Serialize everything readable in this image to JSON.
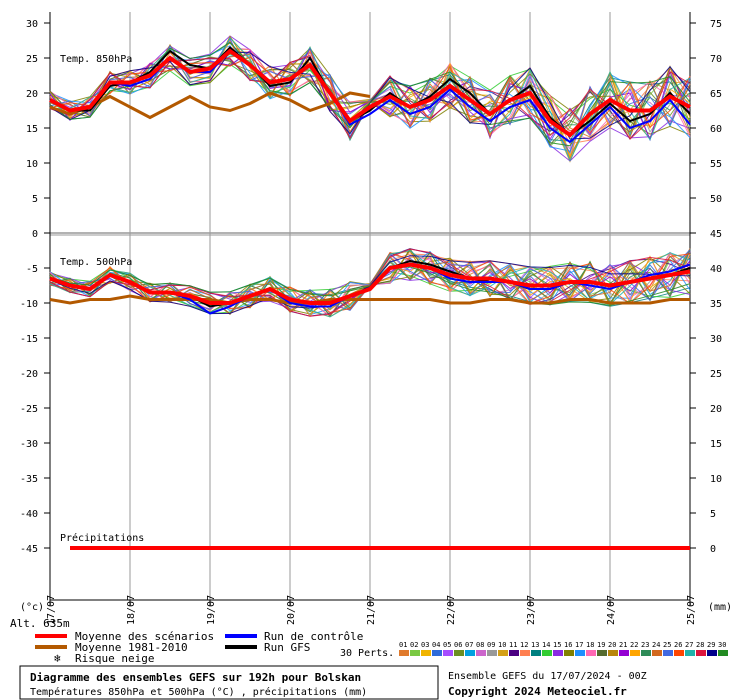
{
  "chart_data": {
    "type": "line",
    "dates": [
      "17/07",
      "18/07",
      "19/07",
      "20/07",
      "21/07",
      "22/07",
      "23/07",
      "24/07",
      "25/07"
    ],
    "x_unit_note": "",
    "left_ticks": [
      30,
      25,
      20,
      15,
      10,
      5,
      0,
      -5,
      -10,
      -15,
      -20,
      -25,
      -30,
      -35,
      -40,
      -45
    ],
    "right_ticks": [
      75,
      70,
      65,
      60,
      55,
      50,
      45,
      40,
      35,
      30,
      25,
      20,
      15,
      10,
      5,
      0
    ],
    "left_unit": "(°c)",
    "right_unit": "(mm)",
    "altitude": "Alt. 635m",
    "panel_labels": {
      "t850": "Temp. 850hPa",
      "t500": "Temp. 500hPa",
      "precip": "Précipitations"
    },
    "x_hours": [
      0,
      6,
      12,
      18,
      24,
      30,
      36,
      42,
      48,
      54,
      60,
      66,
      72,
      78,
      84,
      90,
      96,
      102,
      108,
      114,
      120,
      126,
      132,
      138,
      144,
      150,
      156,
      162,
      168,
      174,
      180,
      186,
      192
    ],
    "t850": {
      "mean": [
        19,
        17.5,
        18,
        21.5,
        21.5,
        22.5,
        25,
        23,
        23.5,
        26,
        24,
        21.5,
        22,
        24,
        20,
        16,
        18,
        19.5,
        18,
        19,
        21,
        19,
        17,
        19,
        20,
        16,
        14,
        17,
        19,
        17.5,
        17.5,
        19.5,
        18
      ],
      "climo": [
        18,
        17,
        18,
        19.5,
        18,
        16.5,
        18,
        19.5,
        18,
        17.5,
        18.5,
        20,
        19,
        17.5,
        18.5,
        20,
        19.5,
        null,
        null,
        null,
        null,
        null,
        null,
        null,
        null,
        null,
        null,
        null,
        null,
        null,
        null,
        null,
        null
      ],
      "control": [
        19,
        17.5,
        18,
        21.5,
        21,
        22,
        25,
        23,
        23,
        26,
        24,
        21.5,
        22,
        24,
        20,
        15.5,
        17,
        19,
        17,
        18,
        20.5,
        18,
        16,
        18,
        19,
        15,
        13,
        15.5,
        18,
        15,
        16,
        19,
        15.5
      ],
      "gfs": [
        19,
        17.5,
        17.5,
        21,
        21.5,
        23,
        26,
        24,
        23.5,
        26.5,
        24,
        21,
        21.5,
        25,
        20,
        16,
        17.5,
        20,
        18,
        19.5,
        22,
        20,
        17,
        19,
        21,
        16.5,
        14,
        16,
        18.5,
        16,
        17,
        20,
        17
      ]
    },
    "t500": {
      "mean": [
        -6.5,
        -7.5,
        -8,
        -6,
        -7,
        -8.5,
        -8.5,
        -9,
        -10,
        -10,
        -9,
        -8,
        -9.5,
        -10,
        -10,
        -9,
        -8,
        -5,
        -4.5,
        -5,
        -6,
        -6.5,
        -6.5,
        -7,
        -7.5,
        -7.5,
        -7,
        -7,
        -7.5,
        -7,
        -6.5,
        -6,
        -5.5
      ],
      "climo": [
        -9.5,
        -10,
        -9.5,
        -9.5,
        -9,
        -9.5,
        -9.5,
        -9.5,
        -9.5,
        -10,
        -9.5,
        -9.5,
        -10,
        -10,
        -9.5,
        -9.5,
        -9.5,
        -9.5,
        -9.5,
        -9.5,
        -10,
        -10,
        -9.5,
        -9.5,
        -10,
        -10,
        -9.5,
        -9.5,
        -10,
        -10,
        -10,
        -9.5,
        -9.5
      ],
      "control": [
        -6.5,
        -7.5,
        -8,
        -6,
        -7,
        -8.5,
        -8.5,
        -9.5,
        -11.5,
        -10.5,
        -9,
        -8,
        -10,
        -10.5,
        -10.5,
        -9,
        -8,
        -5,
        -4.5,
        -5,
        -6.5,
        -7,
        -7,
        -7,
        -8,
        -8,
        -7,
        -7.5,
        -8,
        -7,
        -6,
        -5.5,
        -4.5
      ],
      "gfs": [
        -6.5,
        -7.5,
        -8,
        -6,
        -7,
        -8.5,
        -8.5,
        -9,
        -10.5,
        -10,
        -9,
        -8,
        -9.5,
        -10,
        -10,
        -9,
        -8,
        -5,
        -4,
        -4.5,
        -5.5,
        -6.5,
        -7,
        -7,
        -8,
        -8,
        -7,
        -7,
        -7.5,
        -7,
        -6.5,
        -6,
        -5
      ]
    },
    "precip": {
      "mean": [
        0,
        0,
        0,
        0,
        0,
        0,
        0,
        0,
        0,
        0,
        0,
        0,
        0,
        0,
        0,
        0,
        0,
        0,
        0,
        0,
        0,
        0,
        0,
        0,
        0,
        0,
        0,
        0,
        0,
        0,
        0,
        0,
        0
      ]
    },
    "legend": {
      "mean": "Moyenne des scénarios",
      "climo": "Moyenne 1981-2010",
      "snow": "Risque neige",
      "control": "Run de contrôle",
      "gfs": "Run GFS",
      "perts": "30 Perts.",
      "pert_labels": [
        "01",
        "02",
        "03",
        "04",
        "05",
        "06",
        "07",
        "08",
        "09",
        "10",
        "11",
        "12",
        "13",
        "14",
        "15",
        "16",
        "17",
        "18",
        "19",
        "20",
        "21",
        "22",
        "23",
        "24",
        "25",
        "26",
        "27",
        "28",
        "29",
        "30"
      ]
    },
    "colors": {
      "mean": "#ff0000",
      "climo": "#b35900",
      "control": "#0000ff",
      "gfs": "#000000",
      "perts": [
        "#e07a2c",
        "#7ac943",
        "#f0b400",
        "#2f6bd9",
        "#a64dff",
        "#6b8e23",
        "#00a0e0",
        "#cc66cc",
        "#999999",
        "#d4a017",
        "#4b0082",
        "#ff7f50",
        "#008080",
        "#32cd32",
        "#8a2be2",
        "#808000",
        "#1e90ff",
        "#ff69b4",
        "#556b2f",
        "#b8860b",
        "#9400d3",
        "#ffa500",
        "#2e8b57",
        "#d2691e",
        "#4169e1",
        "#ff4500",
        "#20b2aa",
        "#dc143c",
        "#00008b",
        "#228b22"
      ]
    }
  },
  "footer": {
    "title": "Diagramme des ensembles GEFS sur 192h pour Bolskan",
    "subtitle": "Températures 850hPa et 500hPa (°C) , précipitations (mm)",
    "run": "Ensemble GEFS du 17/07/2024 - 00Z",
    "copyright": "Copyright 2024 Meteociel.fr"
  }
}
